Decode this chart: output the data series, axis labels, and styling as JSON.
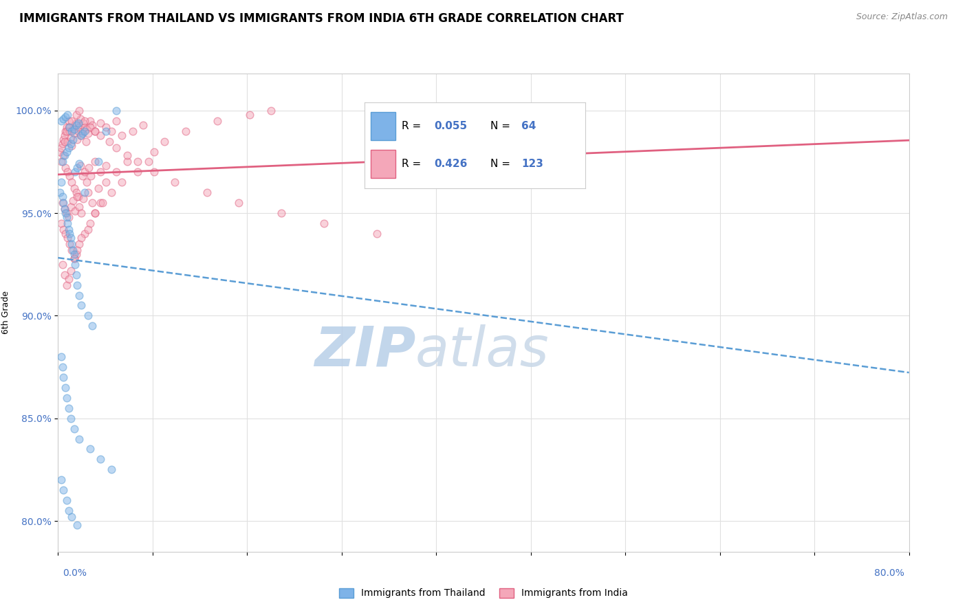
{
  "title": "IMMIGRANTS FROM THAILAND VS IMMIGRANTS FROM INDIA 6TH GRADE CORRELATION CHART",
  "source_text": "Source: ZipAtlas.com",
  "ylabel": "6th Grade",
  "yticks": [
    80.0,
    85.0,
    90.0,
    95.0,
    100.0
  ],
  "ytick_labels": [
    "80.0%",
    "85.0%",
    "90.0%",
    "95.0%",
    "100.0%"
  ],
  "xmin": 0.0,
  "xmax": 80.0,
  "ymin": 78.5,
  "ymax": 101.8,
  "series_thailand": {
    "label": "Immigrants from Thailand",
    "color": "#7eb3e8",
    "edge_color": "#5a9dd5",
    "R": 0.055,
    "N": 64,
    "marker_size": 60,
    "alpha": 0.5,
    "line_color": "#5a9dd5",
    "line_style": "--"
  },
  "series_india": {
    "label": "Immigrants from India",
    "color": "#f4a7b9",
    "edge_color": "#e06080",
    "R": 0.426,
    "N": 123,
    "marker_size": 60,
    "alpha": 0.5,
    "line_color": "#e06080",
    "line_style": "-"
  },
  "watermark_zip": "ZIP",
  "watermark_atlas": "atlas",
  "watermark_color_zip": "#b8cfe8",
  "watermark_color_atlas": "#c8d8e8",
  "background_color": "#ffffff",
  "grid_color": "#e0e0e0",
  "title_fontsize": 12,
  "axis_label_fontsize": 9,
  "tick_fontsize": 10,
  "tick_color": "#4472c4",
  "thailand_scatter_x": [
    0.3,
    0.5,
    0.7,
    0.9,
    1.1,
    1.3,
    1.5,
    1.7,
    1.9,
    2.1,
    2.3,
    2.5,
    0.4,
    0.6,
    0.8,
    1.0,
    1.2,
    1.4,
    1.6,
    1.8,
    2.0,
    0.2,
    0.3,
    0.4,
    0.5,
    0.6,
    0.7,
    0.8,
    0.9,
    1.0,
    1.1,
    1.2,
    1.3,
    1.4,
    1.5,
    1.6,
    1.7,
    1.8,
    2.0,
    2.2,
    2.8,
    3.2,
    0.3,
    0.4,
    0.5,
    0.7,
    0.8,
    1.0,
    1.2,
    1.5,
    2.0,
    3.0,
    4.0,
    5.0,
    0.3,
    0.5,
    0.8,
    1.0,
    1.3,
    1.8,
    2.5,
    4.5,
    3.8,
    5.5
  ],
  "thailand_scatter_y": [
    99.5,
    99.6,
    99.7,
    99.8,
    99.2,
    99.0,
    99.1,
    99.3,
    99.4,
    98.8,
    98.9,
    99.0,
    97.5,
    97.8,
    98.0,
    98.2,
    98.4,
    98.6,
    97.0,
    97.2,
    97.4,
    96.0,
    96.5,
    95.8,
    95.5,
    95.2,
    95.0,
    94.8,
    94.5,
    94.2,
    94.0,
    93.8,
    93.5,
    93.2,
    93.0,
    92.5,
    92.0,
    91.5,
    91.0,
    90.5,
    90.0,
    89.5,
    88.0,
    87.5,
    87.0,
    86.5,
    86.0,
    85.5,
    85.0,
    84.5,
    84.0,
    83.5,
    83.0,
    82.5,
    82.0,
    81.5,
    81.0,
    80.5,
    80.2,
    79.8,
    96.0,
    99.0,
    97.5,
    100.0
  ],
  "india_scatter_x": [
    0.2,
    0.3,
    0.4,
    0.5,
    0.6,
    0.7,
    0.8,
    0.9,
    1.0,
    1.1,
    1.2,
    1.3,
    1.4,
    1.5,
    1.6,
    1.7,
    1.8,
    1.9,
    2.0,
    2.1,
    2.2,
    2.3,
    2.4,
    2.5,
    2.6,
    2.7,
    2.8,
    3.0,
    3.2,
    3.5,
    4.0,
    4.5,
    5.0,
    5.5,
    6.0,
    7.0,
    8.0,
    0.3,
    0.5,
    0.7,
    0.9,
    1.1,
    1.3,
    1.5,
    1.7,
    1.9,
    2.1,
    2.3,
    2.5,
    2.7,
    2.9,
    3.1,
    3.5,
    4.0,
    4.5,
    0.4,
    0.6,
    0.8,
    1.0,
    1.2,
    1.4,
    1.6,
    1.8,
    2.0,
    2.2,
    2.4,
    2.8,
    3.2,
    3.8,
    4.5,
    5.5,
    6.5,
    0.3,
    0.5,
    0.7,
    0.9,
    1.1,
    1.3,
    1.5,
    1.7,
    2.0,
    2.5,
    3.0,
    3.5,
    4.0,
    0.4,
    0.6,
    0.8,
    1.0,
    1.2,
    1.5,
    1.8,
    2.2,
    2.8,
    3.5,
    4.2,
    5.0,
    6.0,
    7.5,
    8.5,
    9.0,
    10.0,
    12.0,
    15.0,
    18.0,
    20.0,
    0.6,
    0.8,
    1.0,
    1.3,
    1.7,
    2.0,
    2.5,
    3.0,
    3.5,
    4.0,
    4.8,
    5.5,
    6.5,
    7.5,
    9.0,
    11.0,
    14.0,
    17.0,
    21.0,
    25.0,
    30.0
  ],
  "india_scatter_y": [
    98.0,
    98.2,
    98.4,
    98.6,
    98.8,
    99.0,
    99.2,
    98.5,
    99.5,
    99.0,
    98.7,
    98.3,
    99.1,
    98.9,
    99.3,
    99.4,
    98.6,
    99.0,
    99.2,
    99.6,
    98.8,
    99.0,
    99.4,
    99.2,
    98.5,
    99.1,
    98.9,
    99.5,
    99.3,
    99.0,
    99.4,
    99.2,
    99.0,
    99.5,
    98.8,
    99.0,
    99.3,
    97.5,
    97.8,
    97.2,
    97.0,
    96.8,
    96.5,
    96.2,
    96.0,
    95.8,
    97.3,
    96.8,
    97.0,
    96.5,
    97.2,
    96.8,
    97.5,
    97.0,
    97.3,
    95.5,
    95.2,
    95.0,
    94.8,
    95.3,
    95.6,
    95.1,
    95.8,
    95.3,
    95.0,
    95.7,
    96.0,
    95.5,
    96.2,
    96.5,
    97.0,
    97.5,
    94.5,
    94.2,
    94.0,
    93.8,
    93.5,
    93.2,
    92.8,
    93.0,
    93.5,
    94.0,
    94.5,
    95.0,
    95.5,
    92.5,
    92.0,
    91.5,
    91.8,
    92.2,
    92.8,
    93.2,
    93.8,
    94.2,
    95.0,
    95.5,
    96.0,
    96.5,
    97.0,
    97.5,
    98.0,
    98.5,
    99.0,
    99.5,
    99.8,
    100.0,
    98.5,
    99.0,
    99.2,
    99.5,
    99.8,
    100.0,
    99.5,
    99.2,
    99.0,
    98.8,
    98.5,
    98.2,
    97.8,
    97.5,
    97.0,
    96.5,
    96.0,
    95.5,
    95.0,
    94.5,
    94.0
  ]
}
